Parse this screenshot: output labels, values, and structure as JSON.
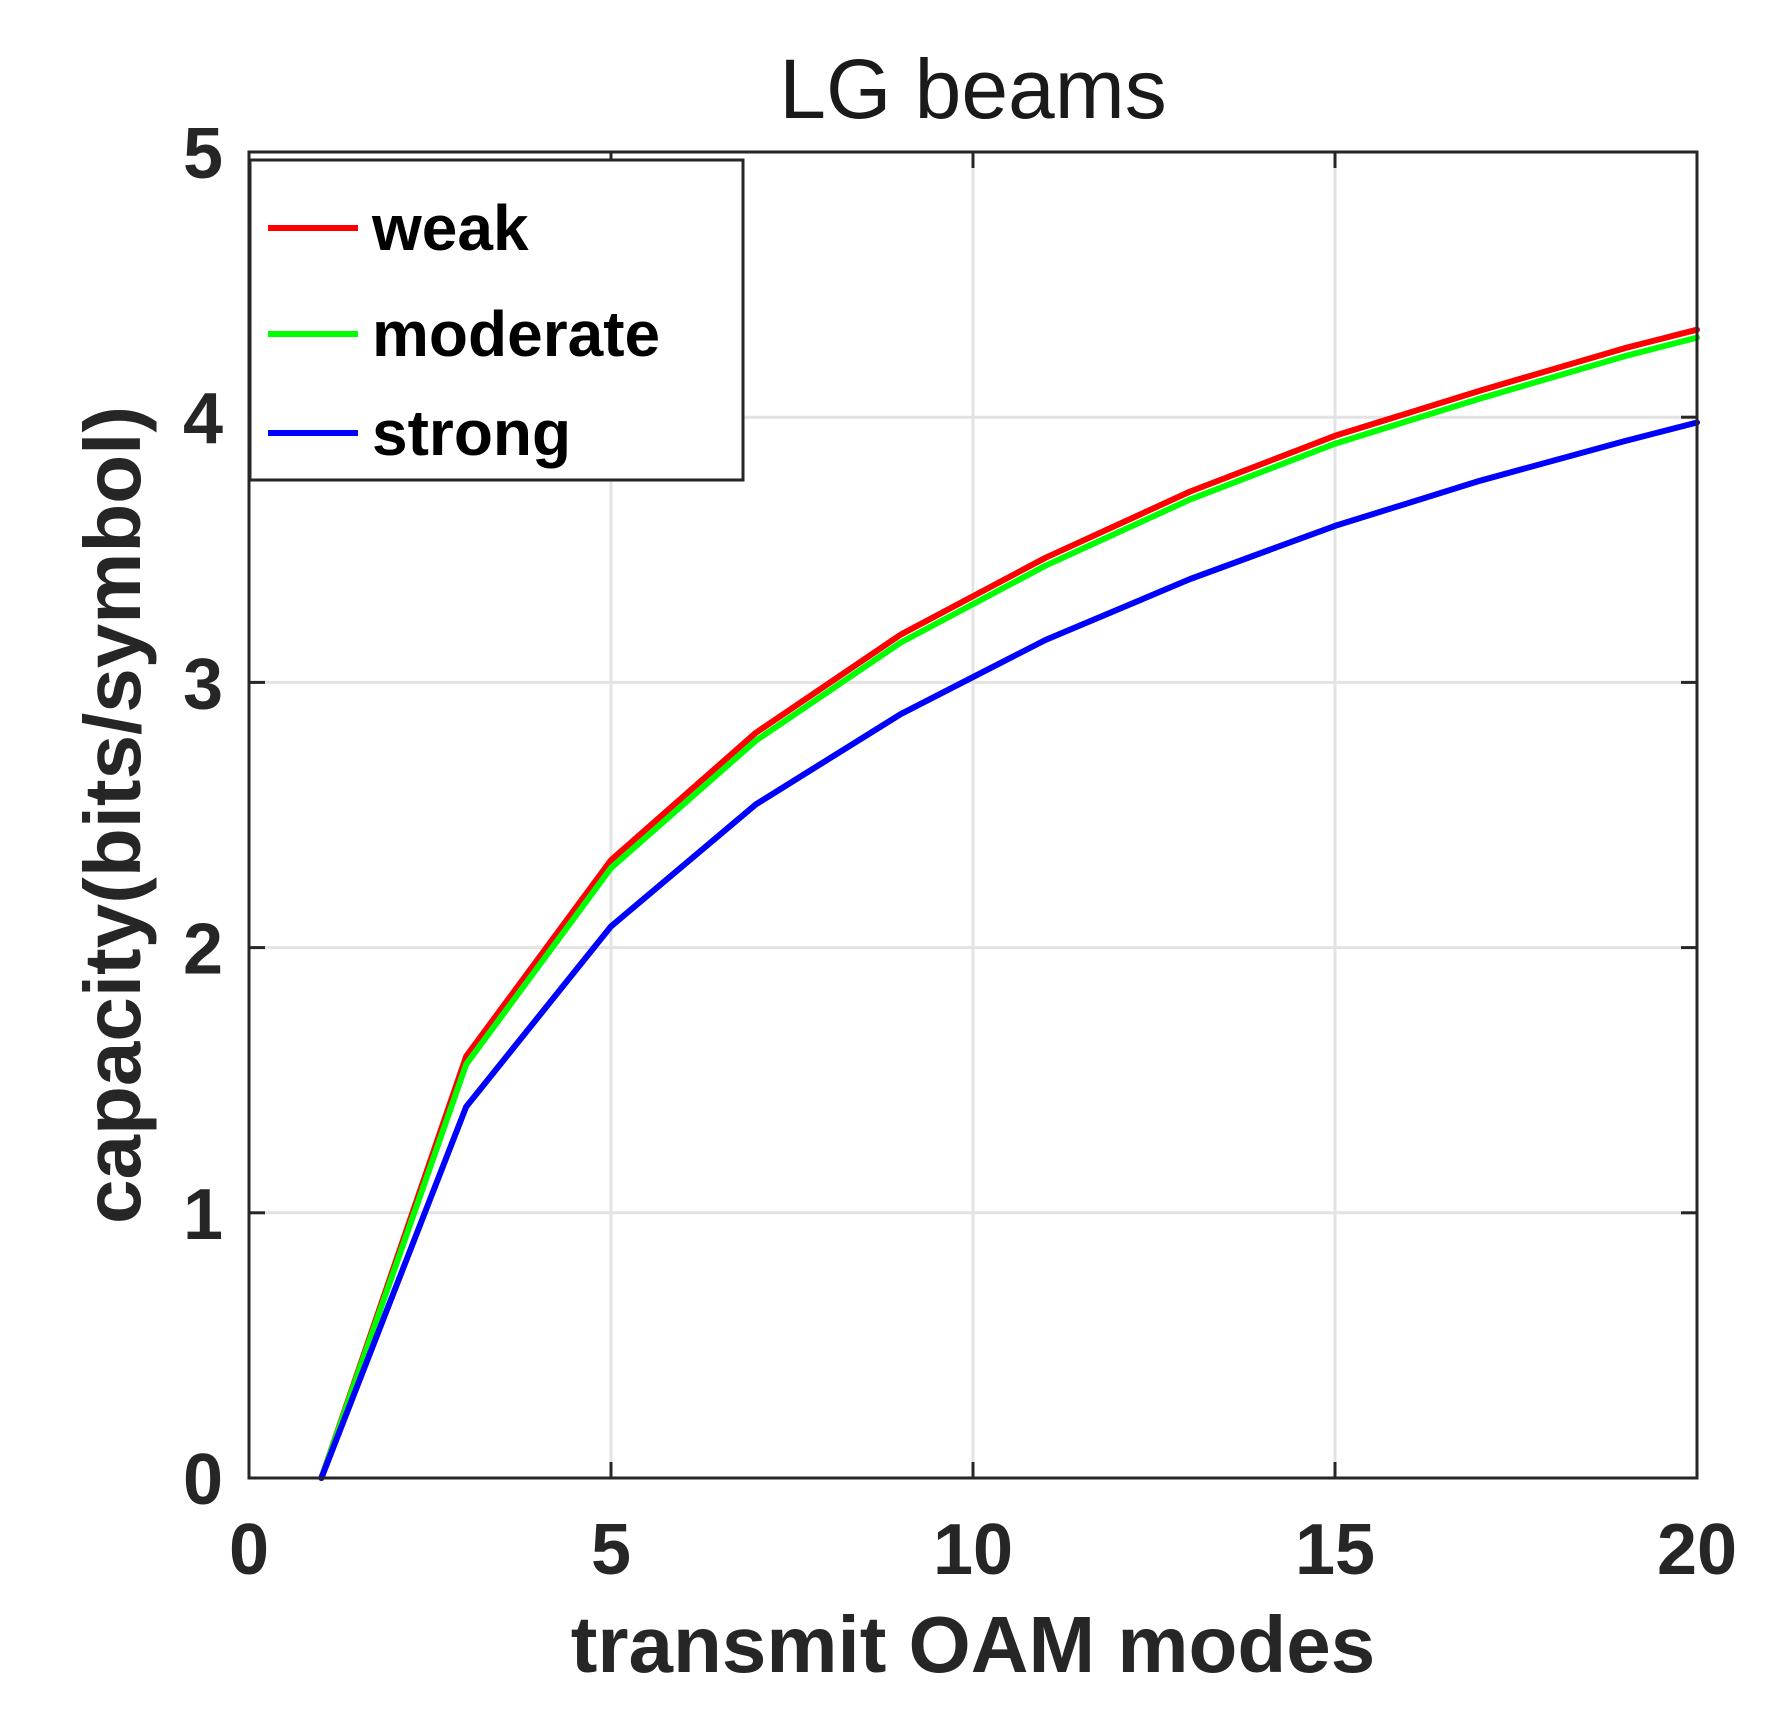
{
  "chart_data": {
    "type": "line",
    "title": "LG beams",
    "xlabel": "transmit OAM modes",
    "ylabel": "capacity(bits/symbol)",
    "xlim": [
      0,
      20
    ],
    "ylim": [
      0,
      5
    ],
    "xticks": [
      0,
      5,
      10,
      15,
      20
    ],
    "yticks": [
      0,
      1,
      2,
      3,
      4,
      5
    ],
    "xtick_labels": [
      "0",
      "5",
      "10",
      "15",
      "20"
    ],
    "ytick_labels": [
      "0",
      "1",
      "2",
      "3",
      "4",
      "5"
    ],
    "grid": true,
    "legend_position": "top-left",
    "x": [
      1,
      3,
      5,
      7,
      9,
      11,
      13,
      15,
      17,
      19,
      20
    ],
    "series": [
      {
        "name": "weak",
        "color": "#ff0000",
        "values": [
          0,
          1.59,
          2.33,
          2.81,
          3.18,
          3.47,
          3.72,
          3.93,
          4.1,
          4.26,
          4.33
        ]
      },
      {
        "name": "moderate",
        "color": "#00ff00",
        "values": [
          0,
          1.56,
          2.3,
          2.78,
          3.15,
          3.44,
          3.69,
          3.9,
          4.07,
          4.23,
          4.3
        ]
      },
      {
        "name": "strong",
        "color": "#0000ff",
        "values": [
          0,
          1.4,
          2.08,
          2.54,
          2.88,
          3.16,
          3.39,
          3.59,
          3.76,
          3.91,
          3.98
        ]
      }
    ]
  }
}
